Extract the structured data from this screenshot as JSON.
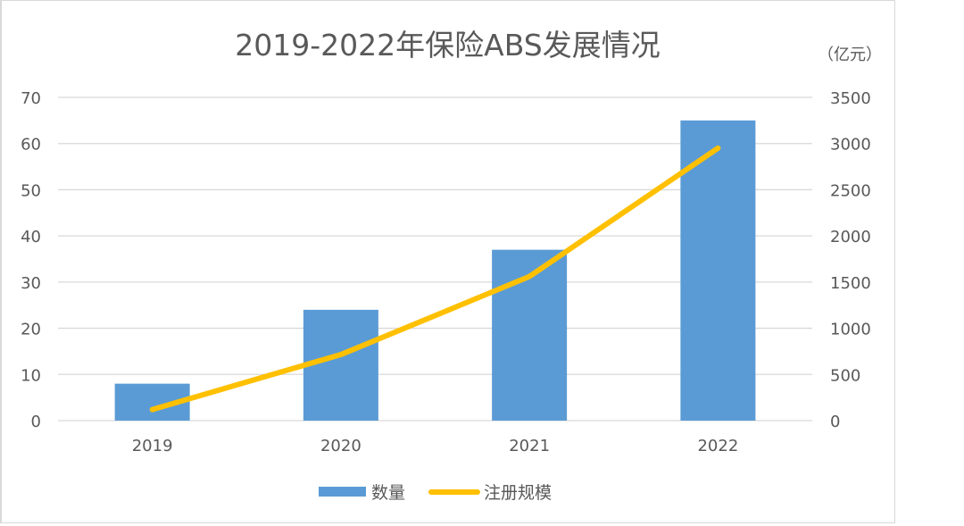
{
  "chart_data": {
    "type": "bar+line",
    "title": "2019-2022年保险ABS发展情况",
    "categories": [
      "2019",
      "2020",
      "2021",
      "2022"
    ],
    "series": [
      {
        "name": "数量",
        "type": "bar",
        "axis": "left",
        "color": "#5b9bd5",
        "values": [
          8,
          24,
          37,
          65
        ]
      },
      {
        "name": "注册规模",
        "type": "line",
        "axis": "right",
        "color": "#ffc000",
        "values": [
          120,
          715,
          1560,
          2950
        ]
      }
    ],
    "left_axis": {
      "ylim": [
        0,
        70
      ],
      "ticks": [
        "0",
        "10",
        "20",
        "30",
        "40",
        "50",
        "60",
        "70"
      ]
    },
    "right_axis": {
      "label": "（亿元）",
      "ylim": [
        0,
        3500
      ],
      "ticks": [
        "0",
        "500",
        "1000",
        "1500",
        "2000",
        "2500",
        "3000",
        "3500"
      ]
    },
    "grid": true,
    "legend_position": "bottom"
  },
  "legend": {
    "bar_label": "数量",
    "line_label": "注册规模"
  },
  "unit_label": "（亿元）"
}
